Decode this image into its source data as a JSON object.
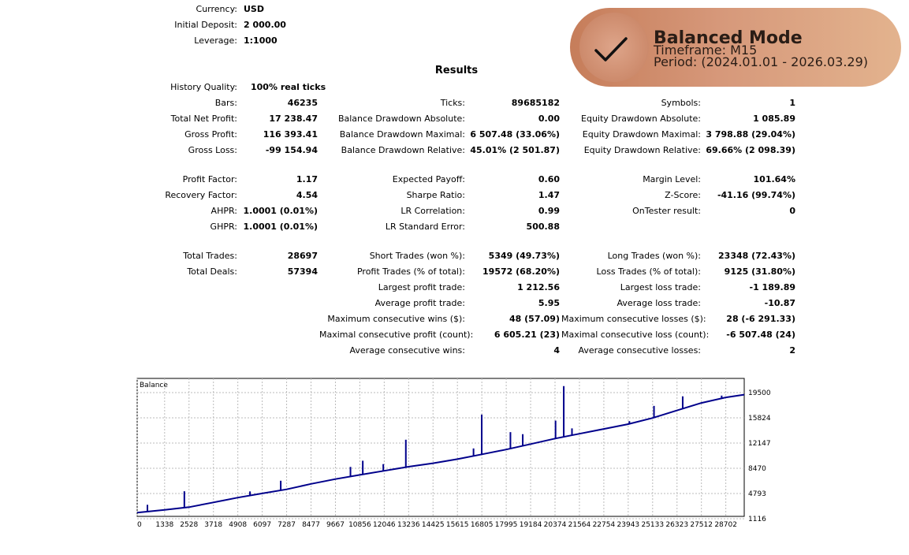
{
  "header": {
    "currency_label": "Currency:",
    "currency_value": "USD",
    "deposit_label": "Initial Deposit:",
    "deposit_value": "2 000.00",
    "leverage_label": "Leverage:",
    "leverage_value": "1:1000"
  },
  "badge": {
    "title": "Balanced Mode",
    "timeframe": "Timeframe: M15",
    "period": "Period: (2024.01.01 - 2026.03.29)",
    "icon": "checkmark-icon",
    "colors": {
      "start": "#c67d5a",
      "end": "#e3b38e"
    }
  },
  "results": {
    "title": "Results",
    "history_quality_label": "History Quality:",
    "history_quality_value": "100% real ticks",
    "col1": [
      {
        "label": "Bars:",
        "value": "46235"
      },
      {
        "label": "Total Net Profit:",
        "value": "17 238.47"
      },
      {
        "label": "Gross Profit:",
        "value": "116 393.41"
      },
      {
        "label": "Gross Loss:",
        "value": "-99 154.94"
      },
      {
        "label": "Profit Factor:",
        "value": "1.17"
      },
      {
        "label": "Recovery Factor:",
        "value": "4.54"
      },
      {
        "label": "AHPR:",
        "value": "1.0001 (0.01%)"
      },
      {
        "label": "GHPR:",
        "value": "1.0001 (0.01%)"
      },
      {
        "label": "Total Trades:",
        "value": "28697"
      },
      {
        "label": "Total Deals:",
        "value": "57394"
      }
    ],
    "col2": [
      {
        "label": "Ticks:",
        "value": "89685182"
      },
      {
        "label": "Balance Drawdown Absolute:",
        "value": "0.00"
      },
      {
        "label": "Balance Drawdown Maximal:",
        "value": "6 507.48 (33.06%)"
      },
      {
        "label": "Balance Drawdown Relative:",
        "value": "45.01% (2 501.87)"
      },
      {
        "label": "Expected Payoff:",
        "value": "0.60"
      },
      {
        "label": "Sharpe Ratio:",
        "value": "1.47"
      },
      {
        "label": "LR Correlation:",
        "value": "0.99"
      },
      {
        "label": "LR Standard Error:",
        "value": "500.88"
      },
      {
        "label": "Short Trades (won %):",
        "value": "5349 (49.73%)"
      },
      {
        "label": "Profit Trades (% of total):",
        "value": "19572 (68.20%)"
      },
      {
        "label": "Largest profit trade:",
        "value": "1 212.56"
      },
      {
        "label": "Average profit trade:",
        "value": "5.95"
      },
      {
        "label": "Maximum consecutive wins ($):",
        "value": "48 (57.09)"
      },
      {
        "label": "Maximal consecutive profit (count):",
        "value": "6 605.21 (23)"
      },
      {
        "label": "Average consecutive wins:",
        "value": "4"
      }
    ],
    "col3": [
      {
        "label": "Symbols:",
        "value": "1"
      },
      {
        "label": "Equity Drawdown Absolute:",
        "value": "1 085.89"
      },
      {
        "label": "Equity Drawdown Maximal:",
        "value": "3 798.88 (29.04%)"
      },
      {
        "label": "Equity Drawdown Relative:",
        "value": "69.66% (2 098.39)"
      },
      {
        "label": "Margin Level:",
        "value": "101.64%"
      },
      {
        "label": "Z-Score:",
        "value": "-41.16 (99.74%)"
      },
      {
        "label": "OnTester result:",
        "value": "0"
      },
      {
        "label": "Long Trades (won %):",
        "value": "23348 (72.43%)"
      },
      {
        "label": "Loss Trades (% of total):",
        "value": "9125 (31.80%)"
      },
      {
        "label": "Largest loss trade:",
        "value": "-1 189.89"
      },
      {
        "label": "Average loss trade:",
        "value": "-10.87"
      },
      {
        "label": "Maximum consecutive losses ($):",
        "value": "28 (-6 291.33)"
      },
      {
        "label": "Maximal consecutive loss (count):",
        "value": "-6 507.48 (24)"
      },
      {
        "label": "Average consecutive losses:",
        "value": "2"
      }
    ]
  },
  "chart_data": {
    "type": "line",
    "title": "Balance",
    "series": [
      {
        "name": "Balance",
        "color": "#00008b"
      }
    ],
    "x_ticks": [
      "0",
      "1338",
      "2528",
      "3718",
      "4908",
      "6097",
      "7287",
      "8477",
      "9667",
      "10856",
      "12046",
      "13236",
      "14425",
      "15615",
      "16805",
      "17995",
      "19184",
      "20374",
      "21564",
      "22754",
      "23943",
      "25133",
      "26323",
      "27512",
      "28702"
    ],
    "y_ticks": [
      "19500",
      "15824",
      "12147",
      "8470",
      "4793",
      "1116"
    ],
    "xlim": [
      0,
      29600
    ],
    "ylim": [
      1116,
      19500
    ],
    "grid": true,
    "line_points": [
      [
        0,
        2000
      ],
      [
        1338,
        2400
      ],
      [
        2528,
        2800
      ],
      [
        3718,
        3500
      ],
      [
        4908,
        4200
      ],
      [
        6097,
        4800
      ],
      [
        7287,
        5400
      ],
      [
        8477,
        6200
      ],
      [
        9667,
        6900
      ],
      [
        10856,
        7500
      ],
      [
        12046,
        8100
      ],
      [
        13236,
        8700
      ],
      [
        14425,
        9200
      ],
      [
        15615,
        9800
      ],
      [
        16805,
        10500
      ],
      [
        17995,
        11200
      ],
      [
        19184,
        12000
      ],
      [
        20374,
        12800
      ],
      [
        21564,
        13500
      ],
      [
        22754,
        14200
      ],
      [
        23943,
        14900
      ],
      [
        25133,
        15800
      ],
      [
        26323,
        16900
      ],
      [
        27512,
        18000
      ],
      [
        28702,
        18800
      ],
      [
        29600,
        19200
      ]
    ],
    "spikes": [
      [
        500,
        1000
      ],
      [
        2300,
        2400
      ],
      [
        5500,
        600
      ],
      [
        7000,
        1400
      ],
      [
        10400,
        1400
      ],
      [
        11000,
        2000
      ],
      [
        12000,
        1000
      ],
      [
        13100,
        4000
      ],
      [
        16400,
        1100
      ],
      [
        16800,
        5800
      ],
      [
        18200,
        2400
      ],
      [
        18800,
        1700
      ],
      [
        20400,
        2600
      ],
      [
        20800,
        7400
      ],
      [
        21200,
        1000
      ],
      [
        24000,
        400
      ],
      [
        25200,
        1700
      ],
      [
        26600,
        1800
      ],
      [
        28500,
        400
      ]
    ]
  }
}
